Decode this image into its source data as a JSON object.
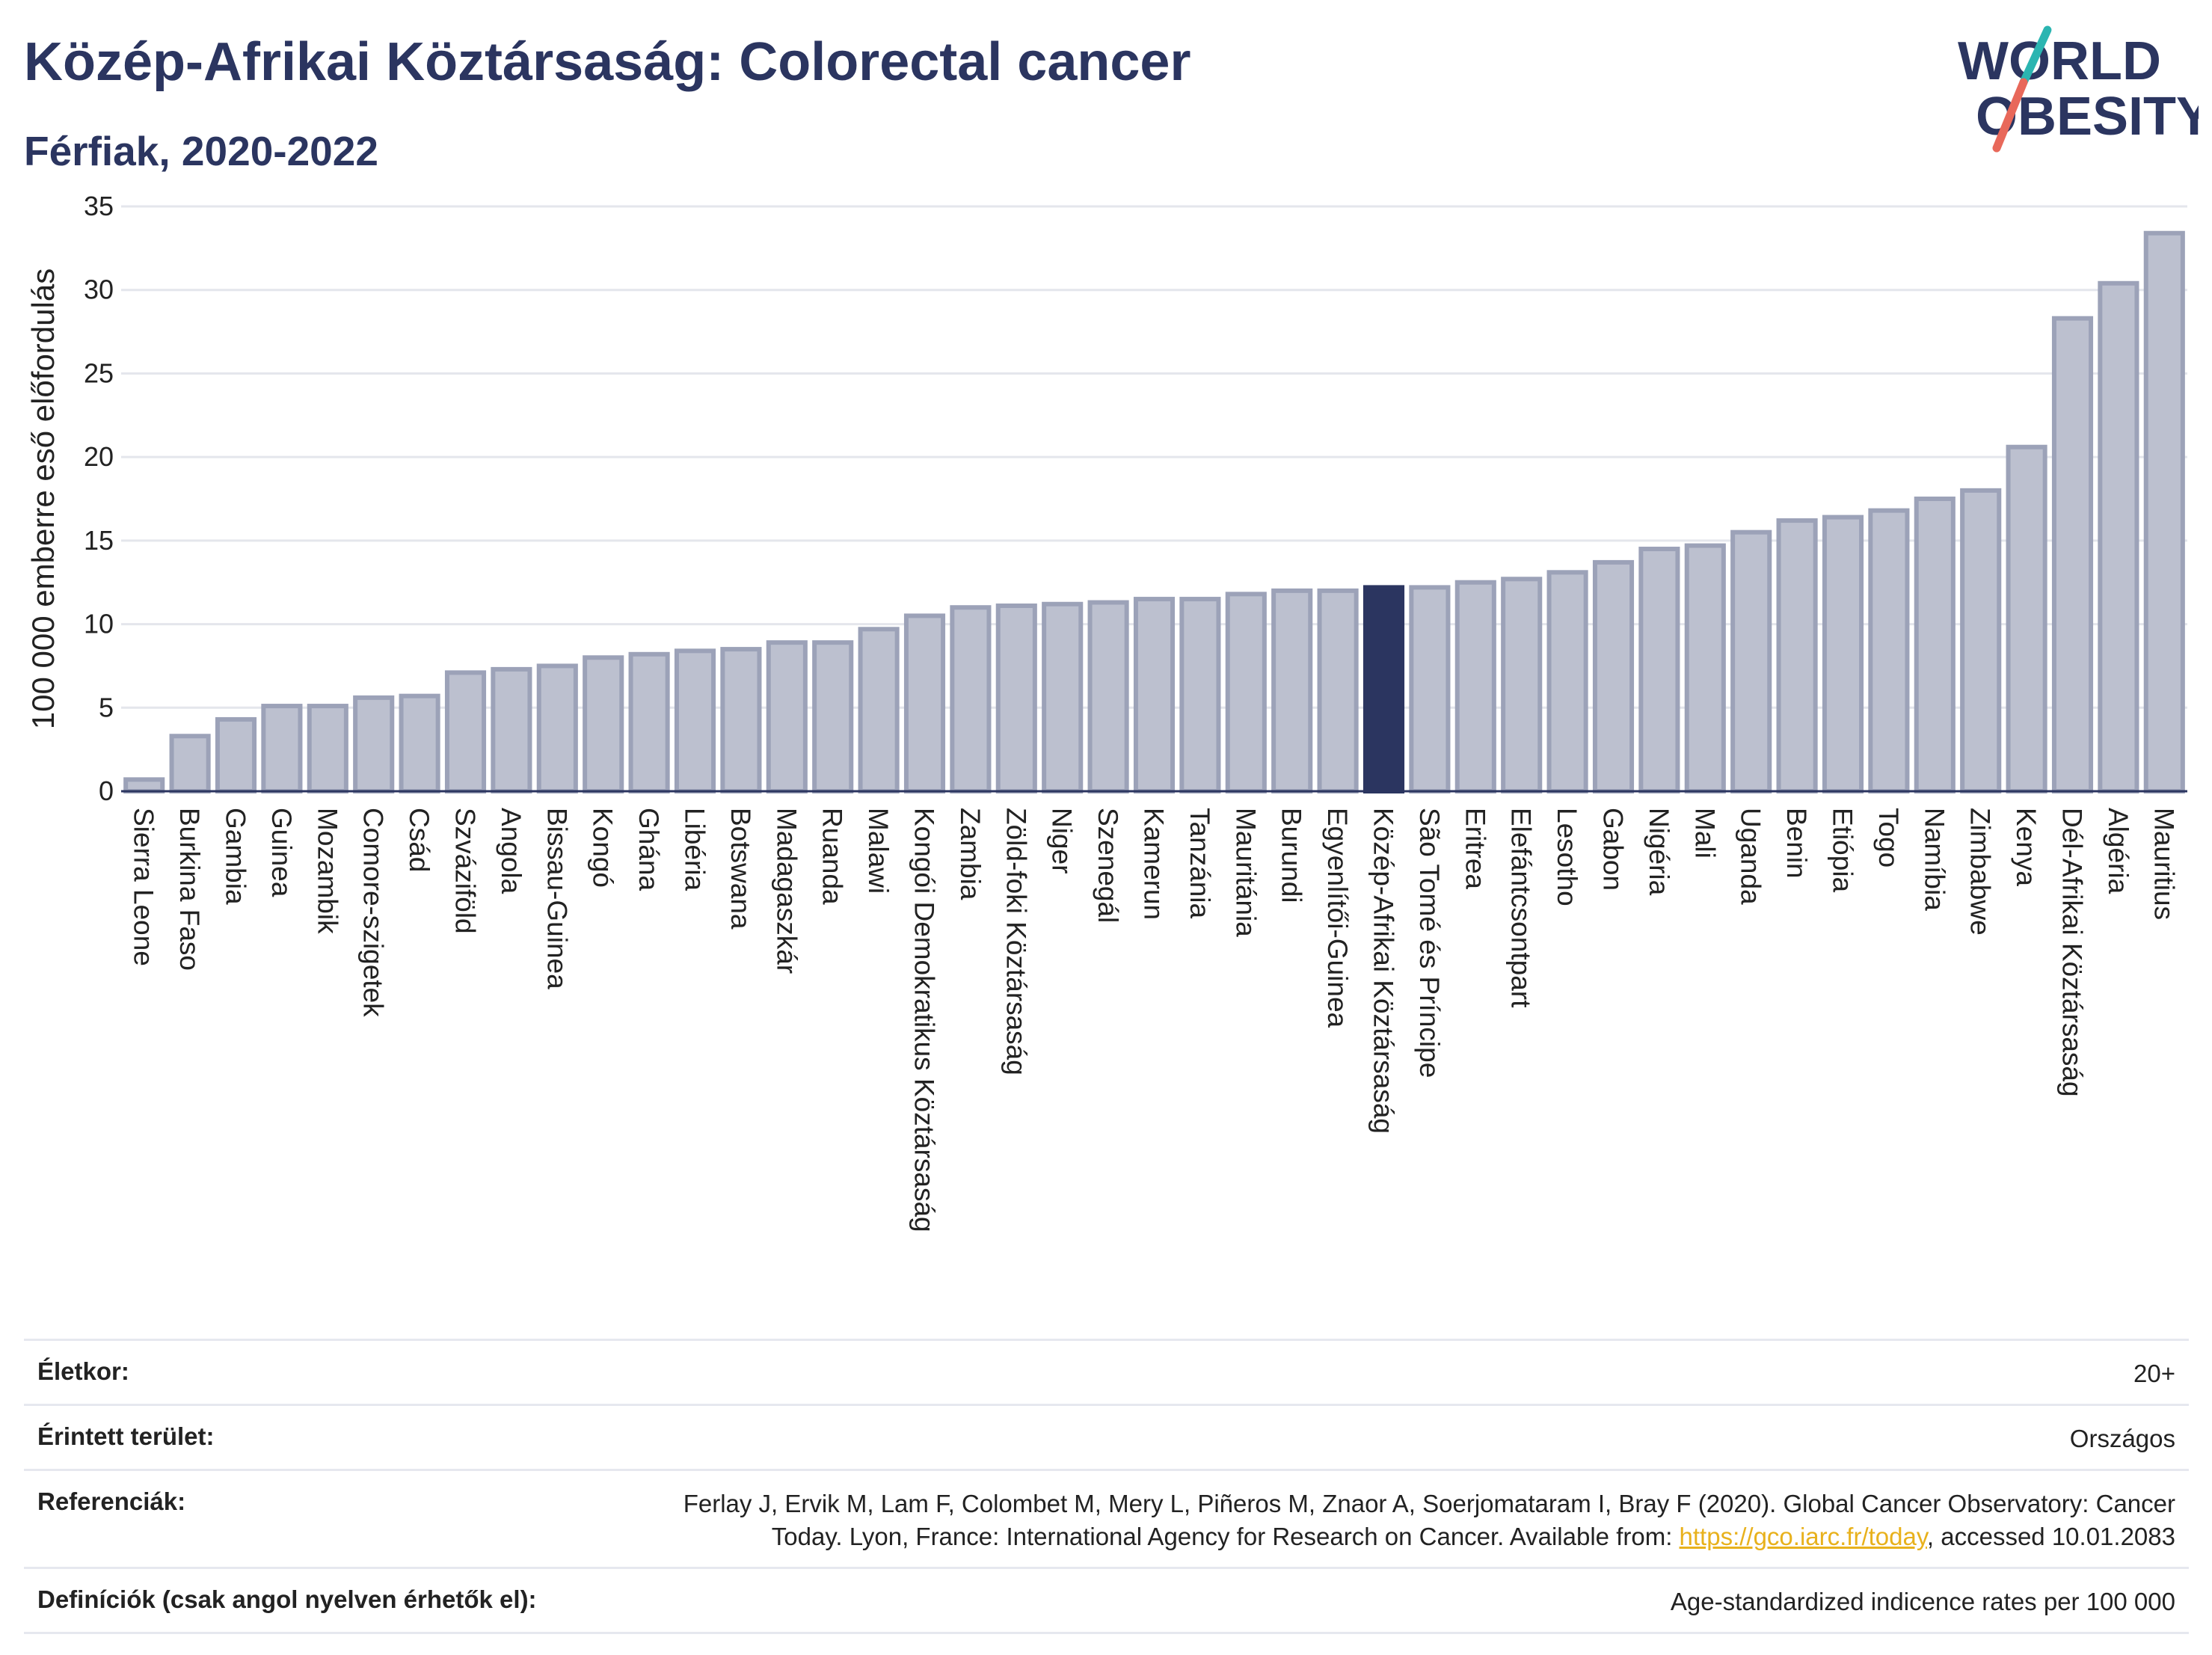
{
  "header": {
    "title": "Közép-Afrikai Köztársaság: Colorectal cancer",
    "subtitle": "Férfiak, 2020-2022"
  },
  "logo": {
    "line1": "WORLD",
    "line2": "OBESITY",
    "accent_teal": "#2bb5b1",
    "accent_red": "#e8685a"
  },
  "chart_data": {
    "type": "bar",
    "ylabel": "100 000 emberre eső előfordulás",
    "ylim": [
      0,
      35
    ],
    "yticks": [
      0,
      5,
      10,
      15,
      20,
      25,
      30,
      35
    ],
    "grid": true,
    "highlight": "Közép-Afrikai Köztársaság",
    "colors": {
      "bar": "#bcc0cf",
      "bar_border": "#9ca2b8",
      "highlight": "#2b3560"
    },
    "categories": [
      "Sierra Leone",
      "Burkina Faso",
      "Gambia",
      "Guinea",
      "Mozambik",
      "Comore-szigetek",
      "Csád",
      "Szváziföld",
      "Angola",
      "Bissau-Guinea",
      "Kongó",
      "Ghána",
      "Libéria",
      "Botswana",
      "Madagaszkár",
      "Ruanda",
      "Malawi",
      "Kongói Demokratikus Köztársaság",
      "Zambia",
      "Zöld-foki Köztársaság",
      "Niger",
      "Szenegál",
      "Kamerun",
      "Tanzánia",
      "Mauritánia",
      "Burundi",
      "Egyenlítői-Guinea",
      "Közép-Afrikai Köztársaság",
      "São Tomé és Príncipe",
      "Eritrea",
      "Elefántcsontpart",
      "Lesotho",
      "Gabon",
      "Nigéria",
      "Mali",
      "Uganda",
      "Benin",
      "Etiópia",
      "Togo",
      "Namíbia",
      "Zimbabwe",
      "Kenya",
      "Dél-Afrikai Köztársaság",
      "Algéria",
      "Mauritius"
    ],
    "values": [
      0.7,
      3.3,
      4.3,
      5.1,
      5.1,
      5.6,
      5.7,
      7.1,
      7.3,
      7.5,
      8.0,
      8.2,
      8.4,
      8.5,
      8.9,
      8.9,
      9.7,
      10.5,
      11.0,
      11.1,
      11.2,
      11.3,
      11.5,
      11.5,
      11.8,
      12.0,
      12.0,
      12.2,
      12.2,
      12.5,
      12.7,
      13.1,
      13.7,
      14.5,
      14.7,
      15.5,
      16.2,
      16.4,
      16.8,
      17.5,
      18.0,
      20.6,
      28.3,
      30.4,
      33.4
    ]
  },
  "meta": {
    "age_label": "Életkor:",
    "age_value": "20+",
    "area_label": "Érintett terület:",
    "area_value": "Országos",
    "ref_label": "Referenciák:",
    "ref_text_line1": "Ferlay J, Ervik M, Lam F, Colombet M, Mery L, Piñeros M, Znaor A, Soerjomataram I, Bray F (2020). Global Cancer Observatory: Cancer",
    "ref_text_line2_pre": "Today. Lyon, France: International Agency for Research on Cancer. Available from: ",
    "ref_link": "https://gco.iarc.fr/today",
    "ref_text_line2_post": ", accessed 10.01.2083",
    "def_label": "Definíciók (csak angol nyelven érhetők el):",
    "def_value": "Age-standardized indicence rates per 100 000"
  }
}
